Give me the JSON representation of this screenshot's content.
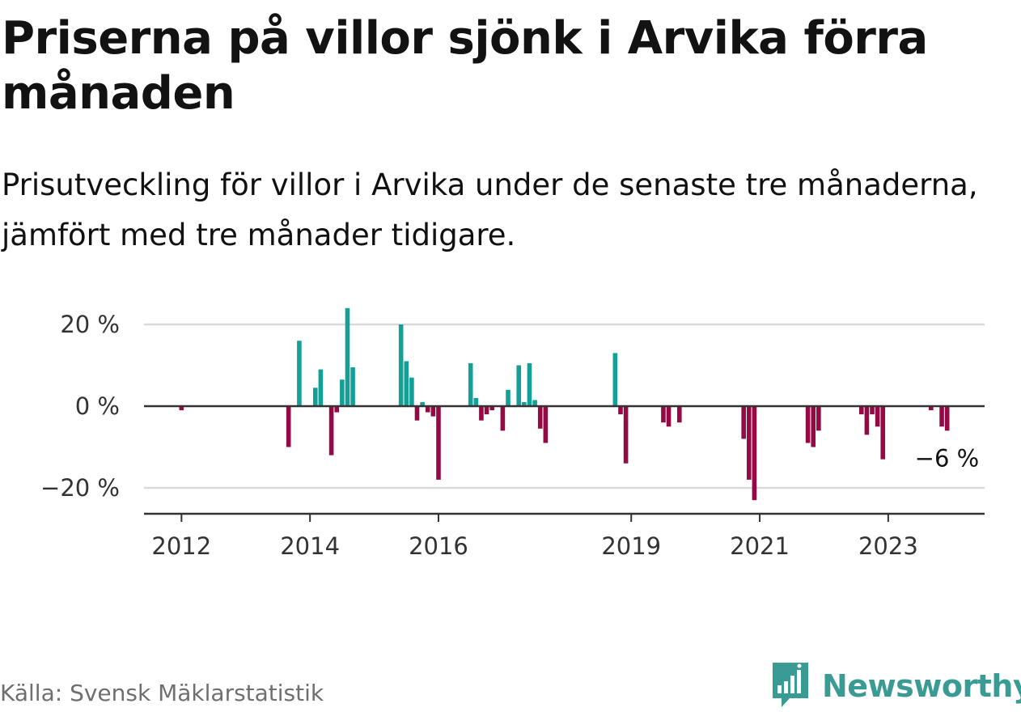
{
  "title": "Priserna på villor sjönk i Arvika förra månaden",
  "subtitle": "Prisutveckling för villor i Arvika under de senaste tre månaderna, jämfört med tre månader tidigare.",
  "source": "Källa: Svensk Mäklarstatistik",
  "brand": {
    "name": "Newsworthy",
    "icon": "newsworthy-logo-icon",
    "color": "#3a9b94"
  },
  "colors": {
    "positive": "#14a096",
    "negative": "#940a45",
    "grid": "#d9d9d9",
    "axis": "#333333"
  },
  "chart_data": {
    "type": "bar",
    "ylim": [
      -27,
      30
    ],
    "yticks": [
      {
        "value": 20,
        "label": "20 %"
      },
      {
        "value": 0,
        "label": "0 %"
      },
      {
        "value": -20,
        "label": "−20 %"
      }
    ],
    "xticks": [
      {
        "value": "2012-01",
        "label": "2012"
      },
      {
        "value": "2014-01",
        "label": "2014"
      },
      {
        "value": "2016-01",
        "label": "2016"
      },
      {
        "value": "2019-01",
        "label": "2019"
      },
      {
        "value": "2021-01",
        "label": "2021"
      },
      {
        "value": "2023-01",
        "label": "2023"
      }
    ],
    "xlim": [
      "2011-06",
      "2024-07"
    ],
    "grid": true,
    "last_value_label": "−6 %",
    "series": [
      {
        "values": [
          {
            "date": "2012-01",
            "value": -1
          },
          {
            "date": "2013-09",
            "value": -10
          },
          {
            "date": "2013-11",
            "value": 16
          },
          {
            "date": "2014-02",
            "value": 4.5
          },
          {
            "date": "2014-03",
            "value": 9
          },
          {
            "date": "2014-05",
            "value": -12
          },
          {
            "date": "2014-06",
            "value": -1.5
          },
          {
            "date": "2014-07",
            "value": 6.5
          },
          {
            "date": "2014-08",
            "value": 24
          },
          {
            "date": "2014-09",
            "value": 9.5
          },
          {
            "date": "2015-06",
            "value": 20
          },
          {
            "date": "2015-07",
            "value": 11
          },
          {
            "date": "2015-08",
            "value": 7
          },
          {
            "date": "2015-09",
            "value": -3.5
          },
          {
            "date": "2015-10",
            "value": 1
          },
          {
            "date": "2015-11",
            "value": -1.5
          },
          {
            "date": "2015-12",
            "value": -2.5
          },
          {
            "date": "2016-01",
            "value": -18
          },
          {
            "date": "2016-07",
            "value": 10.5
          },
          {
            "date": "2016-08",
            "value": 2
          },
          {
            "date": "2016-09",
            "value": -3.5
          },
          {
            "date": "2016-10",
            "value": -2
          },
          {
            "date": "2016-11",
            "value": -1
          },
          {
            "date": "2017-01",
            "value": -6
          },
          {
            "date": "2017-02",
            "value": 4
          },
          {
            "date": "2017-04",
            "value": 10
          },
          {
            "date": "2017-05",
            "value": 1
          },
          {
            "date": "2017-06",
            "value": 10.5
          },
          {
            "date": "2017-07",
            "value": 1.5
          },
          {
            "date": "2017-08",
            "value": -5.5
          },
          {
            "date": "2017-09",
            "value": -9
          },
          {
            "date": "2018-10",
            "value": 13
          },
          {
            "date": "2018-11",
            "value": -2
          },
          {
            "date": "2018-12",
            "value": -14
          },
          {
            "date": "2019-07",
            "value": -4
          },
          {
            "date": "2019-08",
            "value": -5
          },
          {
            "date": "2019-10",
            "value": -4
          },
          {
            "date": "2020-10",
            "value": -8
          },
          {
            "date": "2020-11",
            "value": -18
          },
          {
            "date": "2020-12",
            "value": -23
          },
          {
            "date": "2021-10",
            "value": -9
          },
          {
            "date": "2021-11",
            "value": -10
          },
          {
            "date": "2021-12",
            "value": -6
          },
          {
            "date": "2022-08",
            "value": -2
          },
          {
            "date": "2022-09",
            "value": -7
          },
          {
            "date": "2022-10",
            "value": -2
          },
          {
            "date": "2022-11",
            "value": -5
          },
          {
            "date": "2022-12",
            "value": -13
          },
          {
            "date": "2023-09",
            "value": -1
          },
          {
            "date": "2023-11",
            "value": -5
          },
          {
            "date": "2023-12",
            "value": -6
          }
        ]
      }
    ]
  }
}
